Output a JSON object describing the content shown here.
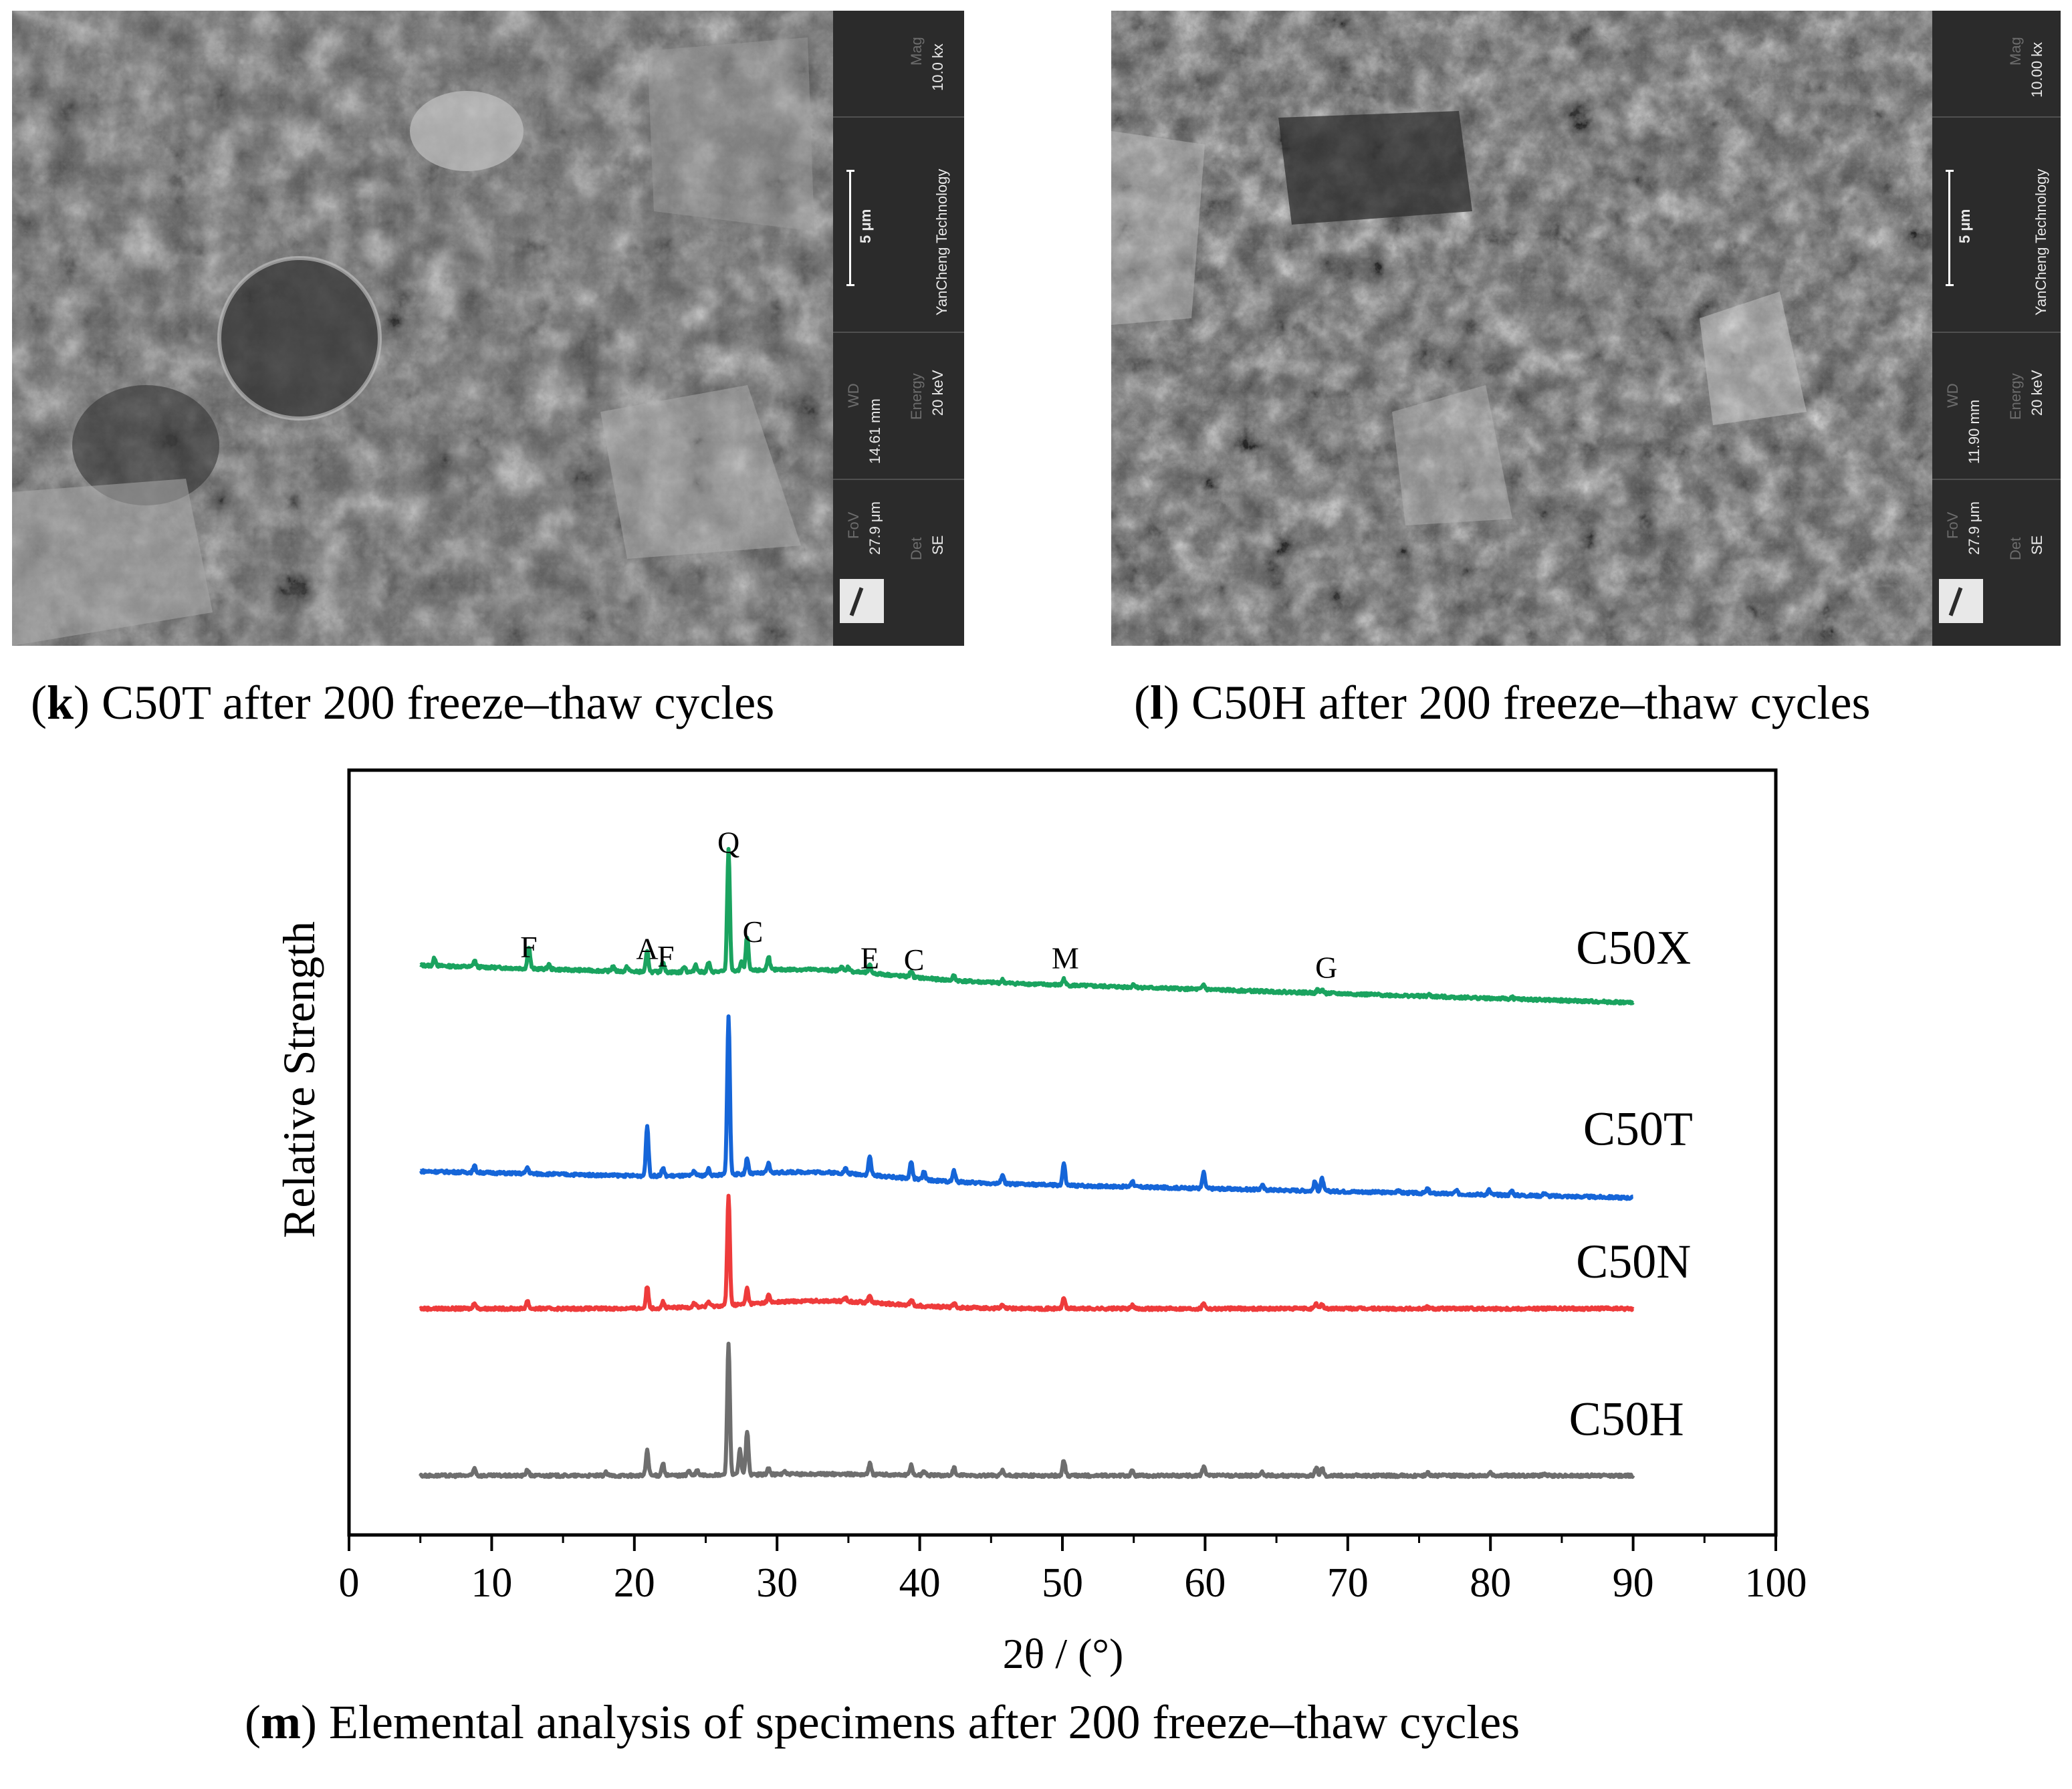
{
  "panels": [
    {
      "id": "k",
      "caption_letter": "k",
      "caption_text": " C50T after 200 freeze–thaw cycles",
      "sem": {
        "mag_label": "Mag",
        "mag": "10.0 kx",
        "scale": "5 μm",
        "lab": "YanCheng Technology",
        "wd_label": "WD",
        "wd": "14.61 mm",
        "energy_label": "Energy",
        "energy": "20 keV",
        "fov_label": "FoV",
        "fov": "27.9 μm",
        "det_label": "Det",
        "det": "SE"
      }
    },
    {
      "id": "l",
      "caption_letter": "l",
      "caption_text": " C50H after 200 freeze–thaw cycles",
      "sem": {
        "mag_label": "Mag",
        "mag": "10.00 kx",
        "scale": "5 μm",
        "lab": "YanCheng Technology",
        "wd_label": "WD",
        "wd": "11.90 mm",
        "energy_label": "Energy",
        "energy": "20 keV",
        "fov_label": "FoV",
        "fov": "27.9 μm",
        "det_label": "Det",
        "det": "SE"
      }
    }
  ],
  "figure_m": {
    "caption_letter": "m",
    "caption_text": " Elemental analysis of specimens after 200 freeze–thaw cycles"
  },
  "chart_data": {
    "type": "line",
    "xlabel": "2θ / (°)",
    "ylabel": "Relative Strength",
    "xlim": [
      0,
      100
    ],
    "xticks": [
      0,
      10,
      20,
      30,
      40,
      50,
      60,
      70,
      80,
      90,
      100
    ],
    "grid": false,
    "series": [
      {
        "name": "C50X",
        "color": "#1aa35f",
        "baseline": 3.2,
        "start": 3.35,
        "end": 3.11,
        "peaks": [
          [
            6.0,
            0.05
          ],
          [
            8.8,
            0.04
          ],
          [
            12.6,
            0.14
          ],
          [
            14.0,
            0.03
          ],
          [
            18.5,
            0.03
          ],
          [
            19.5,
            0.03
          ],
          [
            20.9,
            0.13
          ],
          [
            22.0,
            0.07
          ],
          [
            23.5,
            0.04
          ],
          [
            24.3,
            0.05
          ],
          [
            25.2,
            0.06
          ],
          [
            26.6,
            0.78
          ],
          [
            27.5,
            0.06
          ],
          [
            27.9,
            0.22
          ],
          [
            29.4,
            0.09
          ],
          [
            34.5,
            0.03
          ],
          [
            35.0,
            0.03
          ],
          [
            36.5,
            0.05
          ],
          [
            39.4,
            0.04
          ],
          [
            42.4,
            0.03
          ],
          [
            45.8,
            0.02
          ],
          [
            50.1,
            0.04
          ],
          [
            55.0,
            0.02
          ],
          [
            59.9,
            0.03
          ],
          [
            67.9,
            0.02
          ],
          [
            68.2,
            0.02
          ],
          [
            75.7,
            0.01
          ],
          [
            81.5,
            0.01
          ]
        ]
      },
      {
        "name": "C50T",
        "color": "#1565d8",
        "baseline": 1.95,
        "start": 2.03,
        "end": 1.86,
        "peaks": [
          [
            8.8,
            0.04
          ],
          [
            12.5,
            0.04
          ],
          [
            20.9,
            0.32
          ],
          [
            22.0,
            0.05
          ],
          [
            24.2,
            0.03
          ],
          [
            25.2,
            0.04
          ],
          [
            26.6,
            1.02
          ],
          [
            27.9,
            0.1
          ],
          [
            29.4,
            0.06
          ],
          [
            34.8,
            0.03
          ],
          [
            36.5,
            0.12
          ],
          [
            39.4,
            0.11
          ],
          [
            40.3,
            0.05
          ],
          [
            42.4,
            0.07
          ],
          [
            45.8,
            0.06
          ],
          [
            50.1,
            0.14
          ],
          [
            54.9,
            0.04
          ],
          [
            59.9,
            0.1
          ],
          [
            64.0,
            0.03
          ],
          [
            67.7,
            0.06
          ],
          [
            68.2,
            0.08
          ],
          [
            73.5,
            0.02
          ],
          [
            75.6,
            0.03
          ],
          [
            77.6,
            0.02
          ],
          [
            79.9,
            0.03
          ],
          [
            81.5,
            0.03
          ],
          [
            83.8,
            0.02
          ]
        ]
      },
      {
        "name": "C50N",
        "color": "#ee3b3b",
        "baseline": 1.15,
        "start": 1.15,
        "end": 1.15,
        "peaks": [
          [
            8.8,
            0.04
          ],
          [
            12.5,
            0.05
          ],
          [
            20.9,
            0.14
          ],
          [
            22.0,
            0.04
          ],
          [
            24.2,
            0.03
          ],
          [
            25.2,
            0.03
          ],
          [
            26.6,
            0.7
          ],
          [
            27.9,
            0.1
          ],
          [
            29.4,
            0.05
          ],
          [
            34.8,
            0.02
          ],
          [
            36.5,
            0.05
          ],
          [
            39.4,
            0.04
          ],
          [
            42.4,
            0.03
          ],
          [
            45.8,
            0.02
          ],
          [
            50.1,
            0.07
          ],
          [
            54.9,
            0.02
          ],
          [
            59.9,
            0.04
          ],
          [
            67.8,
            0.03
          ],
          [
            68.2,
            0.03
          ],
          [
            75.6,
            0.01
          ]
        ]
      },
      {
        "name": "C50H",
        "color": "#6e6e6e",
        "baseline": 0.08,
        "start": 0.08,
        "end": 0.08,
        "peaks": [
          [
            8.8,
            0.05
          ],
          [
            12.5,
            0.04
          ],
          [
            18.0,
            0.02
          ],
          [
            20.9,
            0.16
          ],
          [
            22.0,
            0.08
          ],
          [
            23.8,
            0.03
          ],
          [
            24.4,
            0.03
          ],
          [
            26.6,
            0.85
          ],
          [
            27.4,
            0.16
          ],
          [
            27.9,
            0.28
          ],
          [
            29.4,
            0.04
          ],
          [
            30.5,
            0.02
          ],
          [
            36.5,
            0.07
          ],
          [
            39.4,
            0.06
          ],
          [
            40.3,
            0.03
          ],
          [
            42.4,
            0.05
          ],
          [
            45.8,
            0.03
          ],
          [
            50.1,
            0.1
          ],
          [
            54.9,
            0.03
          ],
          [
            59.9,
            0.06
          ],
          [
            64.0,
            0.02
          ],
          [
            67.8,
            0.05
          ],
          [
            68.2,
            0.05
          ],
          [
            75.6,
            0.02
          ],
          [
            80.0,
            0.02
          ],
          [
            83.8,
            0.01
          ]
        ]
      }
    ],
    "series_labels": [
      {
        "text": "C50X",
        "x": 86.0,
        "y": 3.36
      },
      {
        "text": "C50T",
        "x": 86.5,
        "y": 2.2
      },
      {
        "text": "C50N",
        "x": 86.0,
        "y": 1.35
      },
      {
        "text": "C50H",
        "x": 85.5,
        "y": 0.34
      }
    ],
    "annotations": [
      {
        "text": "F",
        "x": 12.6,
        "y": 3.4
      },
      {
        "text": "A",
        "x": 20.9,
        "y": 3.39
      },
      {
        "text": "F",
        "x": 22.2,
        "y": 3.34
      },
      {
        "text": "Q",
        "x": 26.6,
        "y": 4.07
      },
      {
        "text": "C",
        "x": 28.3,
        "y": 3.5
      },
      {
        "text": "E",
        "x": 36.5,
        "y": 3.33
      },
      {
        "text": "C",
        "x": 39.6,
        "y": 3.32
      },
      {
        "text": "M",
        "x": 50.2,
        "y": 3.33
      },
      {
        "text": "G",
        "x": 68.5,
        "y": 3.27
      }
    ]
  }
}
